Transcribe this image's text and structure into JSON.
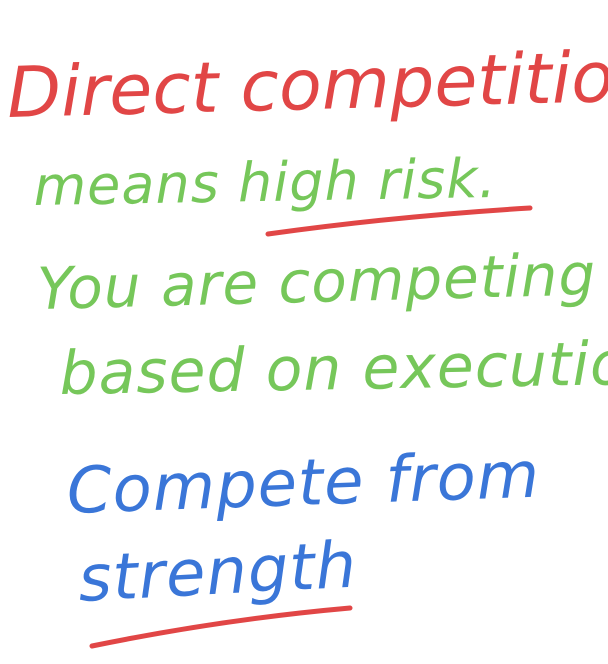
{
  "colors": {
    "red": "#e14646",
    "green": "#76c75a",
    "blue": "#3a76d8",
    "background": "#ffffff"
  },
  "lines": {
    "l1": "Direct competition",
    "l2_a": "means ",
    "l2_b": "high risk.",
    "l3": "You are competing",
    "l4": "based on execution",
    "l5": "Compete from",
    "l6": "strength"
  }
}
